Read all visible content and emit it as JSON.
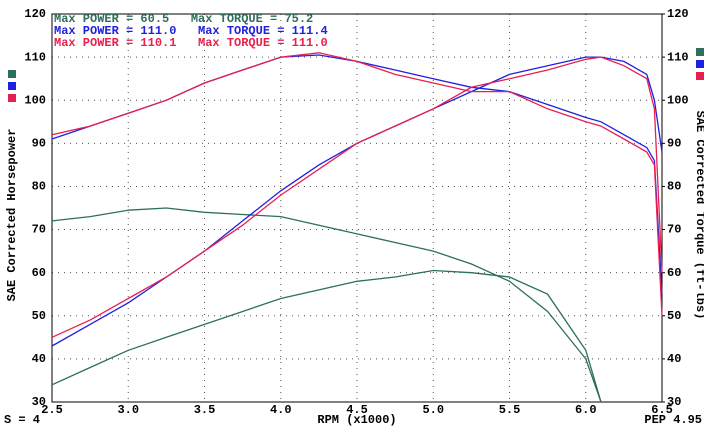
{
  "chart_data": {
    "type": "line",
    "y_label": "SAE Corrected Horsepower",
    "y2_label": "SAE Corrected Torque (ft-lbs)",
    "x_label": "RPM (x1000)",
    "footer_left": "S = 4",
    "footer_right": "PEP 4.95",
    "annotations": [
      {
        "text": "Max POWER = 60.5   Max TORQUE = 75.2",
        "color": "#2e6e5e"
      },
      {
        "text": "Max POWER = 111.0   Max TORQUE = 111.4",
        "color": "#2020e0"
      },
      {
        "text": "Max POWER = 110.1   Max TORQUE = 111.0",
        "color": "#e82050"
      }
    ],
    "x": [
      2.5,
      2.75,
      3.0,
      3.25,
      3.5,
      3.75,
      4.0,
      4.25,
      4.5,
      4.75,
      5.0,
      5.25,
      5.5,
      5.75,
      6.0,
      6.1,
      6.25,
      6.4,
      6.45,
      6.5
    ],
    "series": [
      {
        "color": "#2e6e5e",
        "values": [
          34,
          38,
          42,
          45,
          48,
          51,
          54,
          56,
          58,
          59,
          60.5,
          60,
          59,
          55,
          42,
          30,
          null,
          null,
          null,
          null
        ]
      },
      {
        "color": "#2e6e5e",
        "axis": "y2",
        "values": [
          72,
          73,
          74.5,
          75,
          74,
          73.5,
          73,
          71,
          69,
          67,
          65,
          62,
          58,
          51,
          40,
          30,
          null,
          null,
          null,
          null
        ]
      },
      {
        "color": "#2020e0",
        "values": [
          43,
          48,
          53,
          59,
          65,
          72,
          79,
          85,
          90,
          94,
          98,
          102,
          106,
          108,
          110,
          110,
          109,
          106,
          100,
          88
        ]
      },
      {
        "color": "#2020e0",
        "axis": "y2",
        "values": [
          91,
          94,
          97,
          100,
          104,
          107,
          110,
          110.5,
          109,
          107,
          105,
          103,
          102,
          99,
          96,
          95,
          92,
          89,
          86,
          55
        ]
      },
      {
        "color": "#e82050",
        "values": [
          45,
          49,
          54,
          59,
          65,
          71,
          78,
          84,
          90,
          94,
          98,
          103,
          105,
          107,
          109.5,
          110,
          108,
          105,
          98,
          60
        ]
      },
      {
        "color": "#e82050",
        "axis": "y2",
        "values": [
          92,
          94,
          97,
          100,
          104,
          107,
          110,
          111,
          109,
          106,
          104,
          102,
          102,
          98,
          95,
          94,
          91,
          88,
          85,
          50
        ]
      }
    ],
    "xlim": [
      2.5,
      6.5
    ],
    "xticks": [
      2.5,
      {
        "value": 3,
        "label": "3.0"
      },
      3.5,
      {
        "value": 4,
        "label": "4.0"
      },
      4.5,
      {
        "value": 5,
        "label": "5.0"
      },
      5.5,
      {
        "value": 6,
        "label": "6.0"
      },
      6.5
    ],
    "ylim": [
      30,
      120
    ],
    "yticks": [
      30,
      40,
      50,
      60,
      70,
      80,
      90,
      100,
      110,
      120
    ],
    "y2lim": [
      30,
      120
    ],
    "y2ticks": [
      30,
      40,
      50,
      60,
      70,
      80,
      90,
      100,
      110,
      120
    ],
    "grid": true
  }
}
